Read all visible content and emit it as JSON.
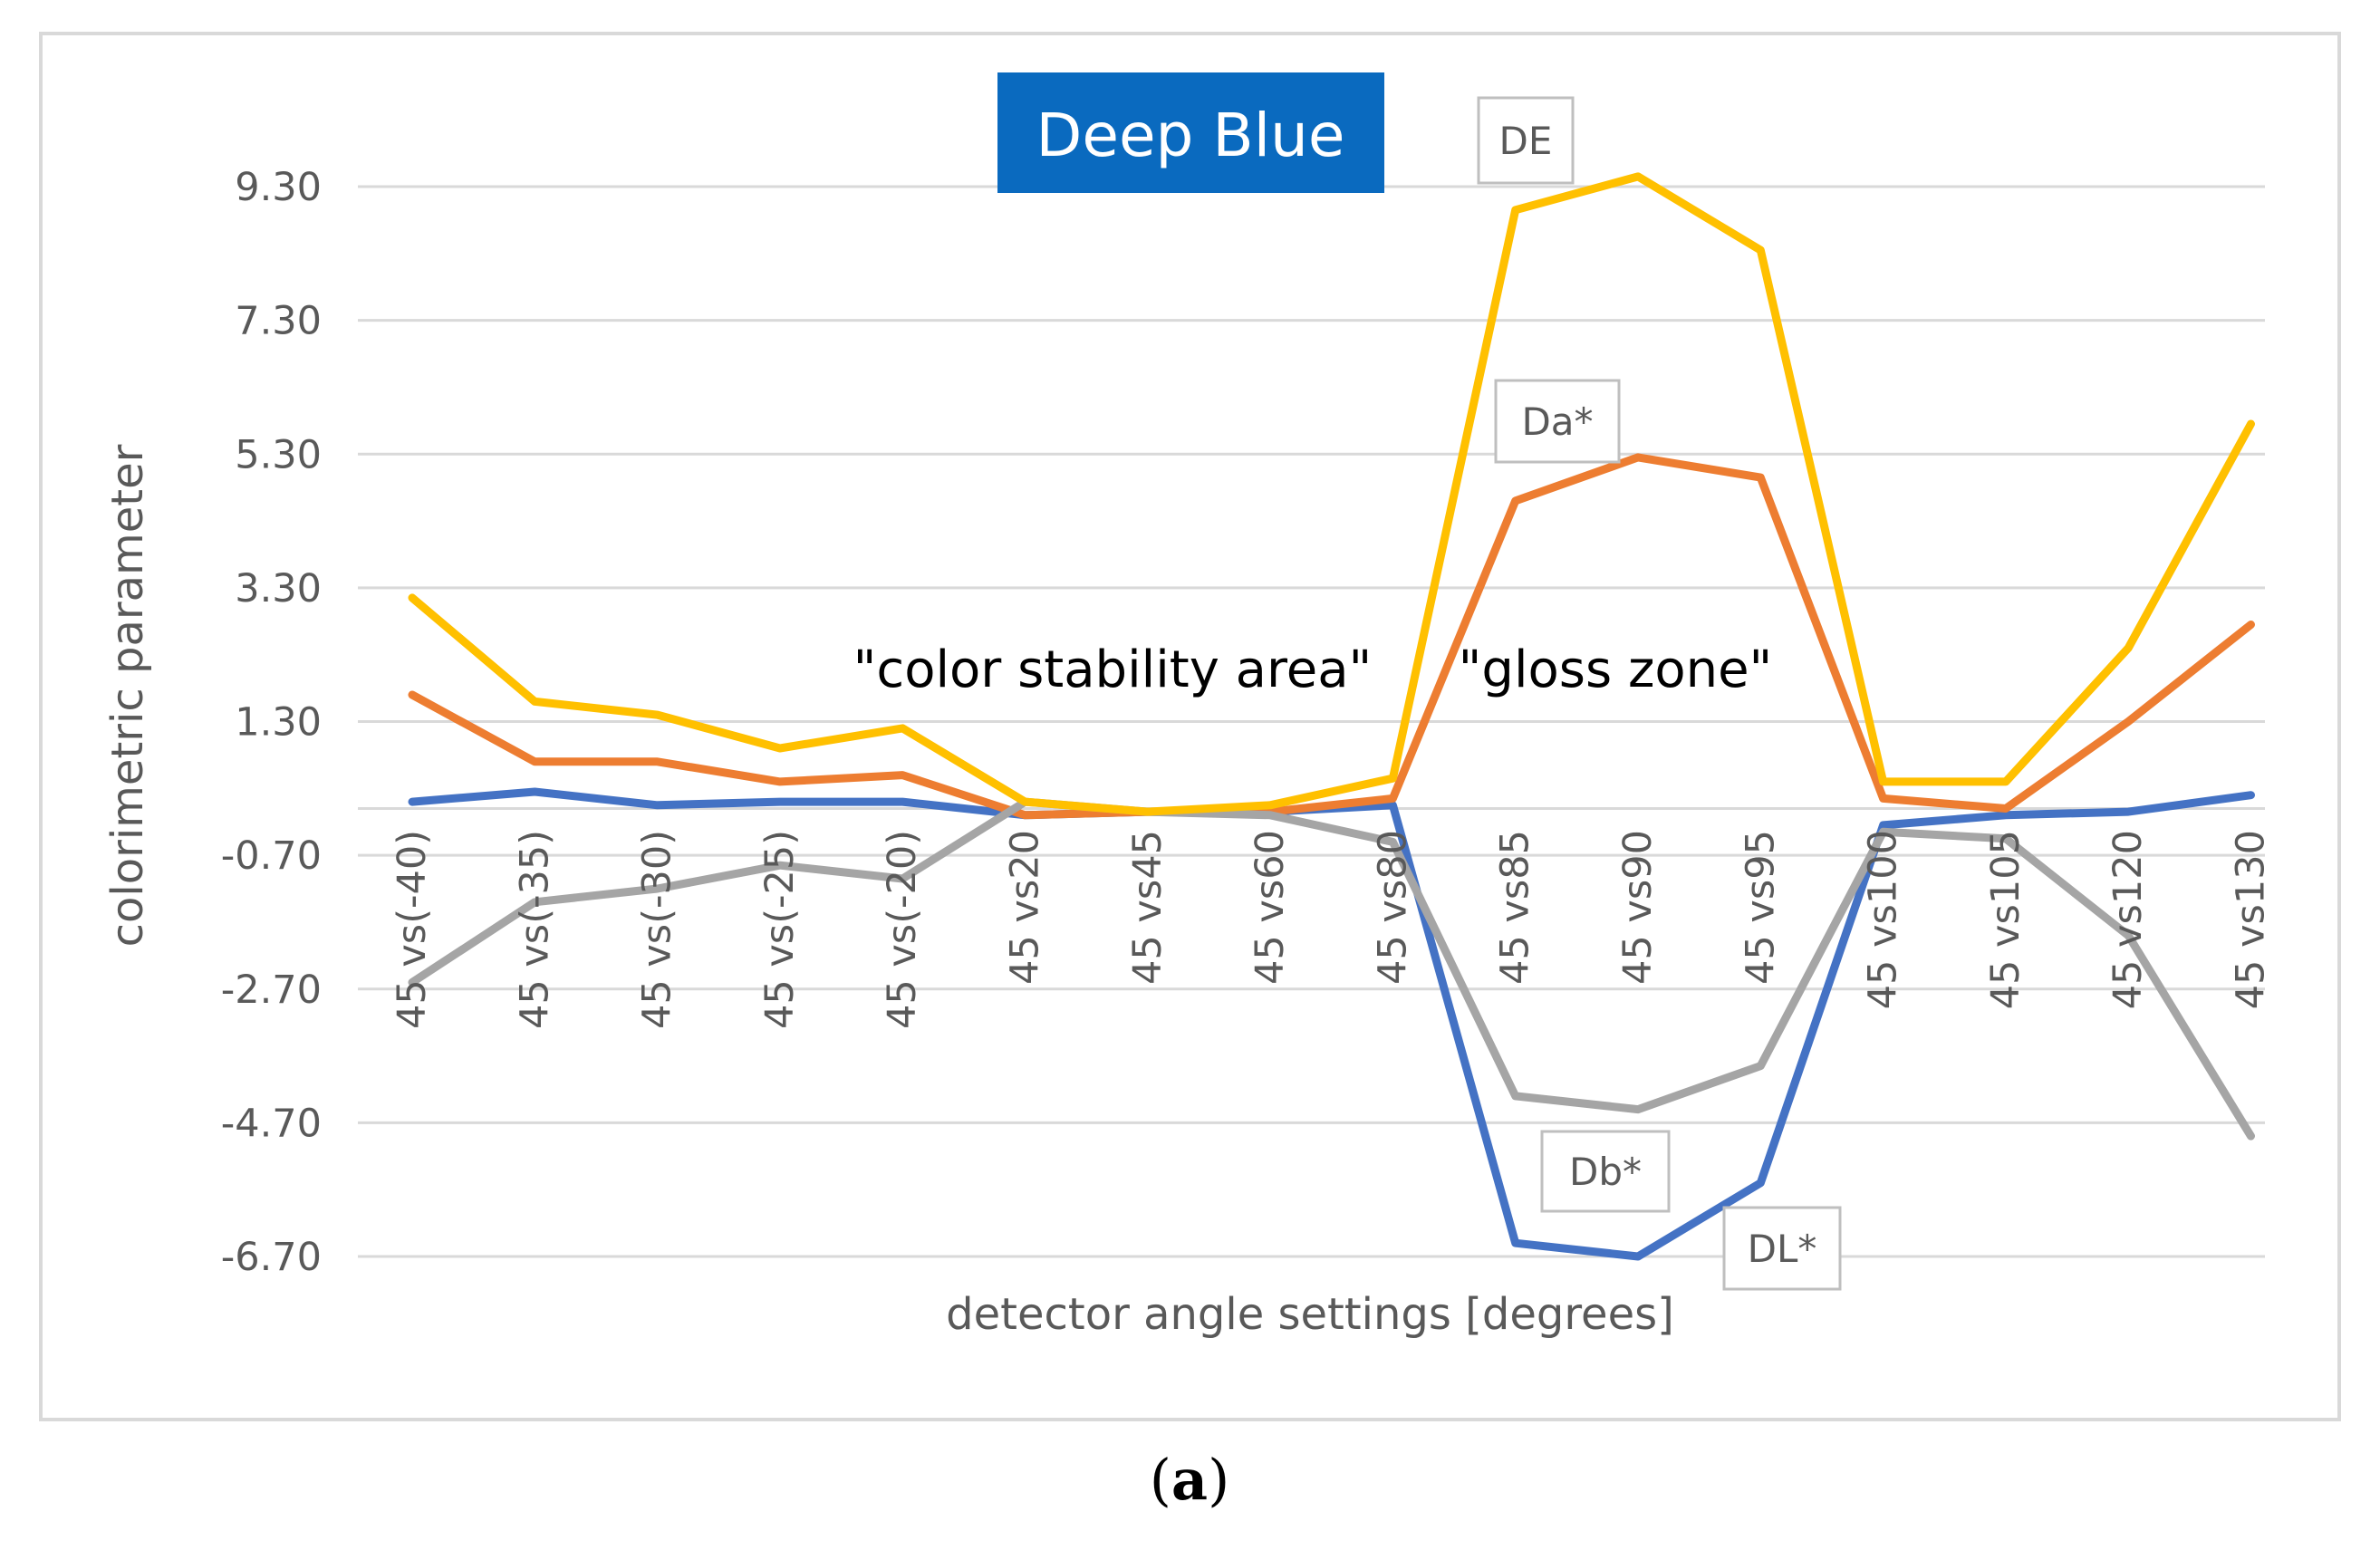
{
  "chart_data": {
    "type": "line",
    "title": "Deep Blue",
    "xlabel": "detector angle settings [degrees]",
    "ylabel": "colorimetric parameter",
    "ylim": [
      -6.7,
      9.3
    ],
    "yticks": [
      "9.30",
      "7.30",
      "5.30",
      "3.30",
      "1.30",
      "-0.70",
      "-2.70",
      "-4.70",
      "-6.70"
    ],
    "yticks_values": [
      9.3,
      7.3,
      5.3,
      3.3,
      1.3,
      -0.7,
      -2.7,
      -4.7,
      -6.7
    ],
    "grid": true,
    "categories": [
      "45 vs(-40)",
      "45 vs(-35)",
      "45 vs(-30)",
      "45 vs(-25)",
      "45 vs(-20)",
      "45 vs20",
      "45 vs45",
      "45 vs60",
      "45 vs80",
      "45 vs85",
      "45 vs90",
      "45 vs95",
      "45 vs100",
      "45 vs105",
      "45 vs120",
      "45 vs130"
    ],
    "series": [
      {
        "name": "DL*",
        "color": "#4472C4",
        "values": [
          0.1,
          0.25,
          0.05,
          0.1,
          0.1,
          -0.1,
          -0.05,
          -0.05,
          0.05,
          -6.5,
          -6.7,
          -5.6,
          -0.25,
          -0.1,
          -0.05,
          0.2
        ]
      },
      {
        "name": "Da*",
        "color": "#ED7D31",
        "values": [
          1.7,
          0.7,
          0.7,
          0.4,
          0.5,
          -0.1,
          -0.05,
          -0.05,
          0.15,
          4.6,
          5.25,
          4.95,
          0.15,
          0.0,
          1.3,
          2.75
        ]
      },
      {
        "name": "Db*",
        "color": "#A5A5A5",
        "values": [
          -2.6,
          -1.4,
          -1.2,
          -0.85,
          -1.05,
          0.1,
          -0.05,
          -0.1,
          -0.5,
          -4.3,
          -4.5,
          -3.85,
          -0.35,
          -0.45,
          -1.9,
          -4.9
        ]
      },
      {
        "name": "DE",
        "color": "#FFC000",
        "values": [
          3.15,
          1.6,
          1.4,
          0.9,
          1.2,
          0.1,
          -0.05,
          0.05,
          0.45,
          8.95,
          9.45,
          8.35,
          0.4,
          0.4,
          2.4,
          5.75
        ]
      }
    ],
    "series_labels": [
      "DE",
      "Da*",
      "Db*",
      "DL*"
    ],
    "annotations": [
      "\"color stability area\"",
      "\"gloss zone\""
    ]
  },
  "caption": {
    "open": "(",
    "letter": "a",
    "close": ")"
  }
}
